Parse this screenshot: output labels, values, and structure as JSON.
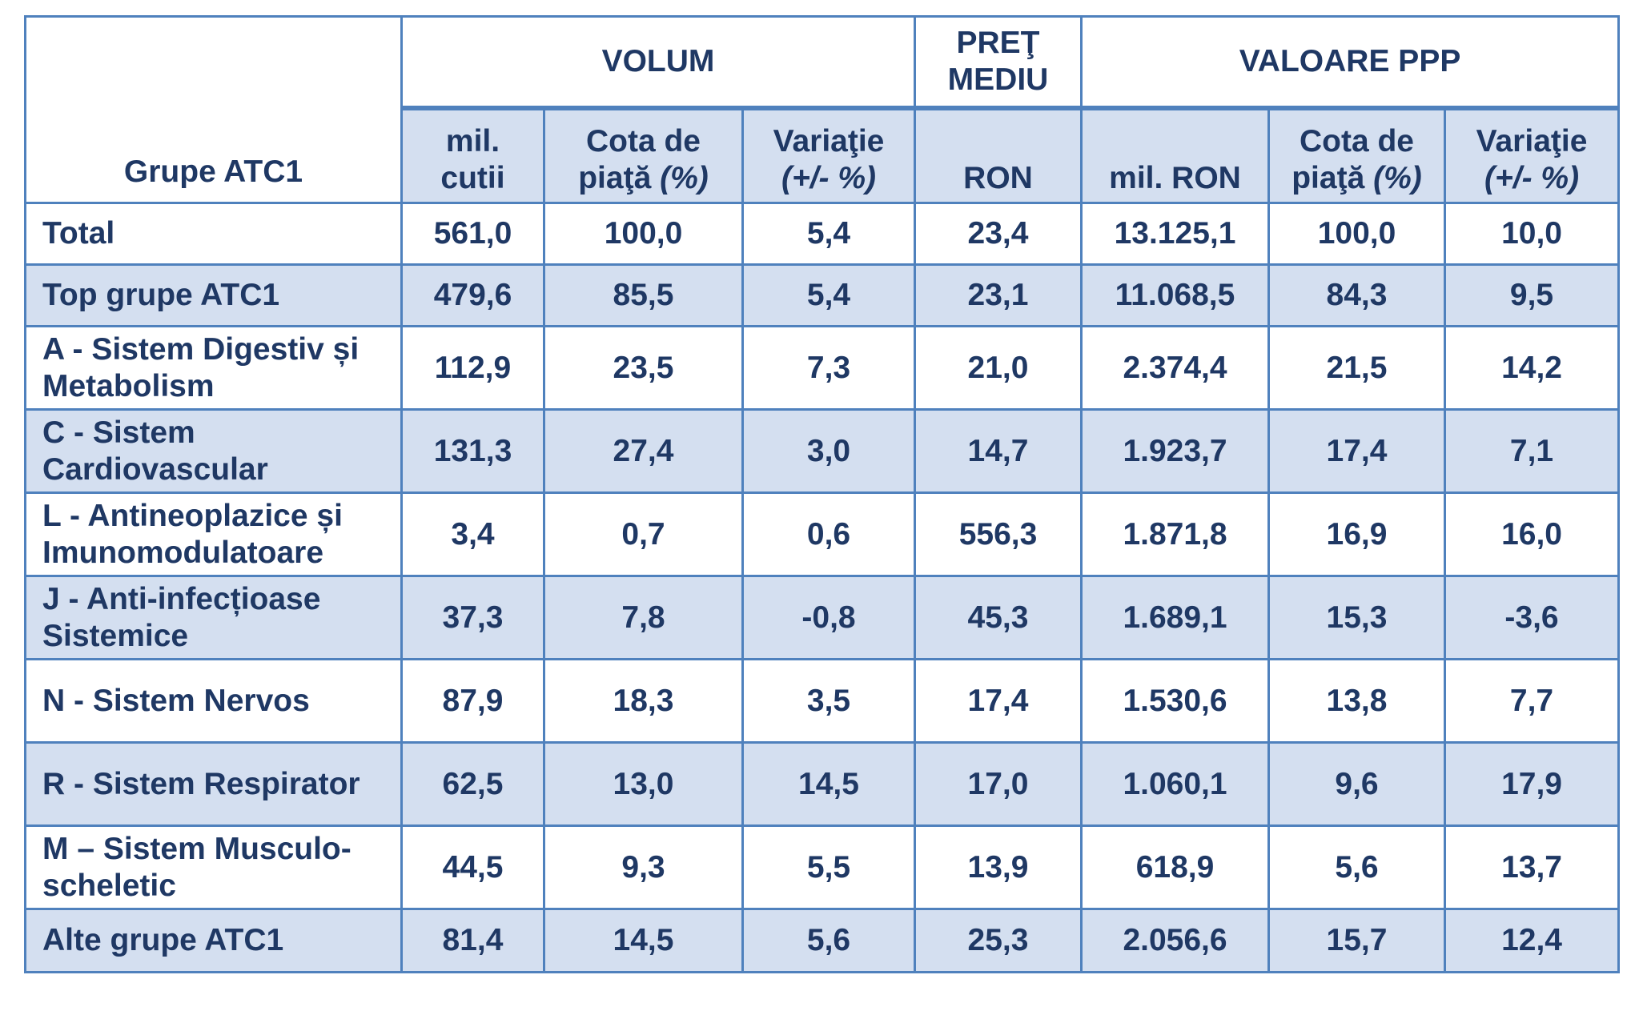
{
  "header": {
    "atc_label": "Grupe ATC1",
    "groups": {
      "volum": "VOLUM",
      "pret_line1": "PREŢ",
      "pret_line2": "MEDIU",
      "valoare": "VALOARE PPP"
    },
    "sub": {
      "mil_cutii_1": "mil.",
      "mil_cutii_2": "cutii",
      "cota_1": "Cota de",
      "cota_2a": "piaţă ",
      "cota_2b": "(%)",
      "var_1": "Variaţie",
      "var_2": "(+/- %)",
      "ron": "RON",
      "mil_ron": "mil. RON",
      "cota2_1": "Cota de",
      "cota2_2a": "piaţă ",
      "cota2_2b": "(%)",
      "var2_1": "Variaţie",
      "var2_2": "(+/- %)"
    }
  },
  "rows": [
    {
      "label": "Total",
      "cells": [
        "561,0",
        "100,0",
        "5,4",
        "23,4",
        "13.125,1",
        "100,0",
        "10,0"
      ]
    },
    {
      "label": "Top grupe ATC1",
      "cells": [
        "479,6",
        "85,5",
        "5,4",
        "23,1",
        "11.068,5",
        "84,3",
        "9,5"
      ]
    },
    {
      "label1": "A - Sistem Digestiv și",
      "label2": "Metabolism",
      "cells": [
        "112,9",
        "23,5",
        "7,3",
        "21,0",
        "2.374,4",
        "21,5",
        "14,2"
      ]
    },
    {
      "label1": "C - Sistem",
      "label2": "Cardiovascular",
      "cells": [
        "131,3",
        "27,4",
        "3,0",
        "14,7",
        "1.923,7",
        "17,4",
        "7,1"
      ]
    },
    {
      "label1": "L - Antineoplazice și",
      "label2": "Imunomodulatoare",
      "cells": [
        "3,4",
        "0,7",
        "0,6",
        "556,3",
        "1.871,8",
        "16,9",
        "16,0"
      ]
    },
    {
      "label1": "J - Anti-infecțioase",
      "label2": "Sistemice",
      "cells": [
        "37,3",
        "7,8",
        "-0,8",
        "45,3",
        "1.689,1",
        "15,3",
        "-3,6"
      ]
    },
    {
      "label": "N - Sistem Nervos",
      "cells": [
        "87,9",
        "18,3",
        "3,5",
        "17,4",
        "1.530,6",
        "13,8",
        "7,7"
      ]
    },
    {
      "label": "R - Sistem Respirator",
      "cells": [
        "62,5",
        "13,0",
        "14,5",
        "17,0",
        "1.060,1",
        "9,6",
        "17,9"
      ]
    },
    {
      "label1": "M – Sistem Musculo-",
      "label2": "scheletic",
      "cells": [
        "44,5",
        "9,3",
        "5,5",
        "13,9",
        "618,9",
        "5,6",
        "13,7"
      ]
    },
    {
      "label": "Alte grupe ATC1",
      "cells": [
        "81,4",
        "14,5",
        "5,6",
        "25,3",
        "2.056,6",
        "15,7",
        "12,4"
      ]
    }
  ]
}
